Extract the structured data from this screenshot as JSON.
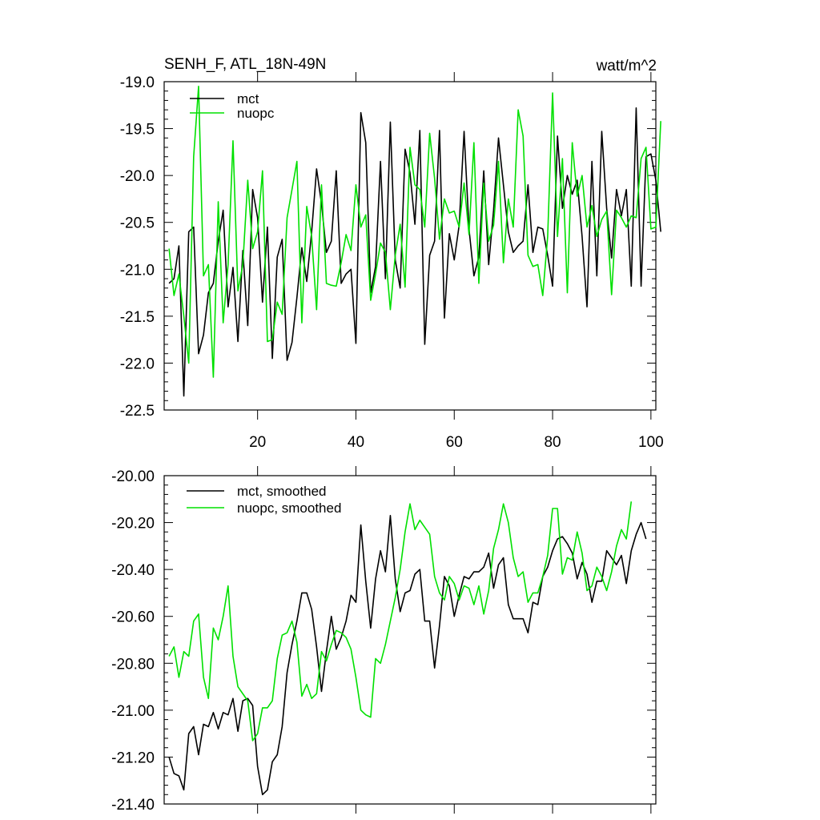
{
  "colors": {
    "mct": "#000000",
    "nuopc": "#00e000",
    "axis": "#000000",
    "background": "#ffffff"
  },
  "chart_data": [
    {
      "type": "line",
      "title": "SENH_F, ATL_18N-49N",
      "units": "watt/m^2",
      "xlim": [
        1,
        101
      ],
      "ylim": [
        -22.5,
        -19.0
      ],
      "yticks": [
        -19.0,
        -19.5,
        -20.0,
        -20.5,
        -21.0,
        -21.5,
        -22.0,
        -22.5
      ],
      "ytick_labels": [
        "-19.0",
        "-19.5",
        "-20.0",
        "-20.5",
        "-21.0",
        "-21.5",
        "-22.0",
        "-22.5"
      ],
      "xticks": [
        20,
        40,
        60,
        80,
        100
      ],
      "xtick_labels": [
        "20",
        "40",
        "60",
        "80",
        "100"
      ],
      "legend": {
        "position": "top-left",
        "entries": [
          "mct",
          "nuopc"
        ]
      },
      "series": [
        {
          "name": "mct",
          "values": [
            -21.15,
            -21.1,
            -20.75,
            -22.35,
            -20.6,
            -20.55,
            -21.9,
            -21.7,
            -21.25,
            -21.15,
            -20.7,
            -20.37,
            -21.4,
            -20.98,
            -21.77,
            -20.8,
            -21.6,
            -20.15,
            -20.45,
            -21.35,
            -20.55,
            -21.95,
            -20.87,
            -20.68,
            -21.97,
            -21.78,
            -21.3,
            -20.77,
            -21.13,
            -20.6,
            -19.93,
            -20.3,
            -20.82,
            -20.7,
            -19.95,
            -21.15,
            -21.05,
            -21.0,
            -21.79,
            -19.33,
            -19.65,
            -21.25,
            -20.97,
            -19.85,
            -21.1,
            -19.43,
            -20.9,
            -21.2,
            -19.72,
            -19.97,
            -20.52,
            -19.52,
            -21.8,
            -20.85,
            -20.7,
            -19.52,
            -21.52,
            -20.62,
            -20.9,
            -20.53,
            -19.53,
            -20.57,
            -21.07,
            -20.87,
            -19.95,
            -20.95,
            -20.37,
            -19.6,
            -20.1,
            -20.6,
            -20.82,
            -20.75,
            -20.7,
            -20.1,
            -20.82,
            -20.55,
            -20.57,
            -20.85,
            -21.18,
            -19.58,
            -20.35,
            -20.0,
            -20.2,
            -20.05,
            -20.65,
            -21.4,
            -19.85,
            -21.07,
            -19.53,
            -20.35,
            -20.88,
            -20.15,
            -20.43,
            -20.15,
            -21.18,
            -19.28,
            -21.18,
            -19.8,
            -19.77,
            -20.05,
            -20.6
          ]
        },
        {
          "name": "nuopc",
          "values": [
            -20.78,
            -21.28,
            -21.05,
            -21.5,
            -22.0,
            -19.8,
            -19.05,
            -21.07,
            -20.95,
            -22.15,
            -20.28,
            -21.57,
            -20.95,
            -19.63,
            -21.23,
            -20.95,
            -20.05,
            -20.78,
            -20.6,
            -19.95,
            -21.77,
            -21.75,
            -21.35,
            -21.48,
            -20.45,
            -20.15,
            -19.85,
            -21.57,
            -20.33,
            -20.65,
            -21.43,
            -20.1,
            -21.15,
            -21.17,
            -21.18,
            -20.93,
            -20.63,
            -20.8,
            -20.1,
            -20.55,
            -20.42,
            -21.33,
            -21.05,
            -20.72,
            -20.82,
            -21.43,
            -20.85,
            -20.52,
            -21.19,
            -19.7,
            -20.1,
            -20.15,
            -20.55,
            -19.55,
            -20.03,
            -20.68,
            -20.25,
            -20.4,
            -20.38,
            -20.55,
            -20.08,
            -20.63,
            -19.65,
            -21.15,
            -20.08,
            -20.7,
            -20.53,
            -19.85,
            -20.93,
            -20.25,
            -20.55,
            -19.3,
            -19.58,
            -20.85,
            -20.97,
            -20.95,
            -21.28,
            -20.65,
            -19.12,
            -20.65,
            -19.82,
            -21.25,
            -19.65,
            -20.22,
            -20.0,
            -20.55,
            -20.32,
            -20.65,
            -20.47,
            -20.38,
            -21.27,
            -20.37,
            -20.45,
            -20.55,
            -20.43,
            -20.45,
            -19.82,
            -19.7,
            -20.57,
            -20.55,
            -19.42
          ]
        }
      ]
    },
    {
      "type": "line",
      "title": "",
      "ylim": [
        -21.4,
        -20.0
      ],
      "yticks": [
        -20.0,
        -20.2,
        -20.4,
        -20.6,
        -20.8,
        -21.0,
        -21.2,
        -21.4
      ],
      "ytick_labels": [
        "-20.00",
        "-20.20",
        "-20.40",
        "-20.60",
        "-20.80",
        "-21.00",
        "-21.20",
        "-21.40"
      ],
      "xlim": [
        1,
        101
      ],
      "xticks": [
        20,
        40,
        60,
        80,
        100
      ],
      "legend": {
        "position": "top-left",
        "entries": [
          "mct, smoothed",
          "nuopc, smoothed"
        ]
      },
      "series": [
        {
          "name": "mct, smoothed",
          "values": [
            -21.2,
            -21.27,
            -21.28,
            -21.34,
            -21.1,
            -21.07,
            -21.19,
            -21.06,
            -21.07,
            -21.01,
            -21.08,
            -21.01,
            -21.02,
            -20.95,
            -21.09,
            -20.96,
            -20.95,
            -20.98,
            -21.24,
            -21.36,
            -21.34,
            -21.22,
            -21.19,
            -21.07,
            -20.84,
            -20.72,
            -20.62,
            -20.5,
            -20.5,
            -20.57,
            -20.73,
            -20.92,
            -20.75,
            -20.6,
            -20.74,
            -20.69,
            -20.62,
            -20.51,
            -20.54,
            -20.21,
            -20.45,
            -20.65,
            -20.44,
            -20.32,
            -20.41,
            -20.17,
            -20.44,
            -20.58,
            -20.5,
            -20.49,
            -20.42,
            -20.4,
            -20.62,
            -20.62,
            -20.82,
            -20.64,
            -20.43,
            -20.47,
            -20.6,
            -20.51,
            -20.43,
            -20.44,
            -20.41,
            -20.41,
            -20.39,
            -20.33,
            -20.48,
            -20.38,
            -20.35,
            -20.55,
            -20.61,
            -20.61,
            -20.61,
            -20.67,
            -20.54,
            -20.55,
            -20.43,
            -20.39,
            -20.32,
            -20.27,
            -20.26,
            -20.29,
            -20.33,
            -20.44,
            -20.37,
            -20.42,
            -20.54,
            -20.45,
            -20.45,
            -20.32,
            -20.35,
            -20.38,
            -20.34,
            -20.46,
            -20.32,
            -20.25,
            -20.2,
            -20.27
          ]
        },
        {
          "name": "nuopc, smoothed",
          "values": [
            -20.77,
            -20.73,
            -20.86,
            -20.75,
            -20.77,
            -20.62,
            -20.59,
            -20.86,
            -20.95,
            -20.65,
            -20.7,
            -20.6,
            -20.47,
            -20.77,
            -20.9,
            -20.93,
            -20.96,
            -21.13,
            -21.1,
            -20.99,
            -20.99,
            -20.96,
            -20.78,
            -20.68,
            -20.67,
            -20.62,
            -20.71,
            -20.94,
            -20.89,
            -20.95,
            -20.93,
            -20.75,
            -20.79,
            -20.72,
            -20.66,
            -20.67,
            -20.69,
            -20.74,
            -20.86,
            -21.0,
            -21.02,
            -21.03,
            -20.78,
            -20.8,
            -20.72,
            -20.62,
            -20.52,
            -20.4,
            -20.24,
            -20.12,
            -20.23,
            -20.19,
            -20.22,
            -20.25,
            -20.43,
            -20.5,
            -20.53,
            -20.43,
            -20.46,
            -20.53,
            -20.47,
            -20.48,
            -20.55,
            -20.47,
            -20.59,
            -20.49,
            -20.31,
            -20.23,
            -20.12,
            -20.2,
            -20.35,
            -20.43,
            -20.41,
            -20.54,
            -20.5,
            -20.5,
            -20.43,
            -20.34,
            -20.14,
            -20.14,
            -20.42,
            -20.35,
            -20.36,
            -20.24,
            -20.33,
            -20.49,
            -20.47,
            -20.39,
            -20.43,
            -20.49,
            -20.41,
            -20.3,
            -20.23,
            -20.27,
            -20.11
          ]
        }
      ]
    }
  ]
}
